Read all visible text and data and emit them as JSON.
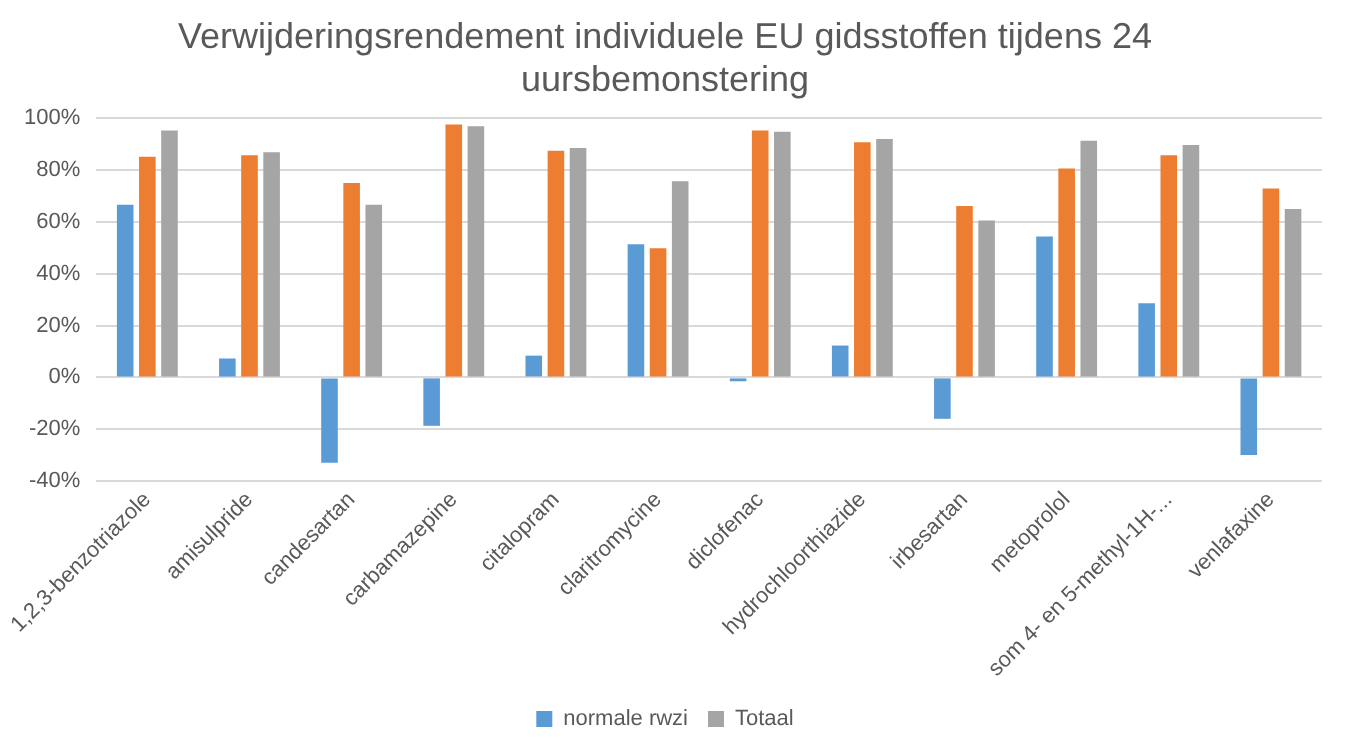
{
  "chart_data": {
    "type": "bar",
    "title": "Verwijderingsrendement individuele EU gidsstoffen tijdens 24 uursbemonstering",
    "categories": [
      "1,2,3-benzotriazole",
      "amisulpride",
      "candesartan",
      "carbamazepine",
      "citalopram",
      "claritromycine",
      "diclofenac",
      "hydrochloorthiazide",
      "irbesartan",
      "metoprolol",
      "som 4- en 5-methyl-1H-...",
      "venlafaxine"
    ],
    "series": [
      {
        "name": "normale rwzi",
        "color": "#5b9bd5",
        "values": [
          66.7,
          7.3,
          -33,
          -18.7,
          8.4,
          51.4,
          -1.5,
          12.3,
          -16,
          54.4,
          28.6,
          -30
        ]
      },
      {
        "color": "#ed7d31",
        "values": [
          85.2,
          85.8,
          75.1,
          97.6,
          87.5,
          49.9,
          95.3,
          90.8,
          66.2,
          80.7,
          85.8,
          72.9
        ]
      },
      {
        "name": "Totaal",
        "color": "#a5a5a5",
        "values": [
          95.3,
          86.9,
          66.7,
          97,
          88.6,
          75.7,
          94.8,
          92,
          60.6,
          91.4,
          89.7,
          65
        ]
      }
    ],
    "ylim": [
      -40,
      100
    ],
    "yticks": [
      {
        "value": -40,
        "label": "-40%"
      },
      {
        "value": -20,
        "label": "-20%"
      },
      {
        "value": 0,
        "label": "0%"
      },
      {
        "value": 20,
        "label": "20%"
      },
      {
        "value": 40,
        "label": "40%"
      },
      {
        "value": 60,
        "label": "60%"
      },
      {
        "value": 80,
        "label": "80%"
      },
      {
        "value": 100,
        "label": "100%"
      }
    ],
    "grid": "y",
    "legend": "bottom"
  }
}
